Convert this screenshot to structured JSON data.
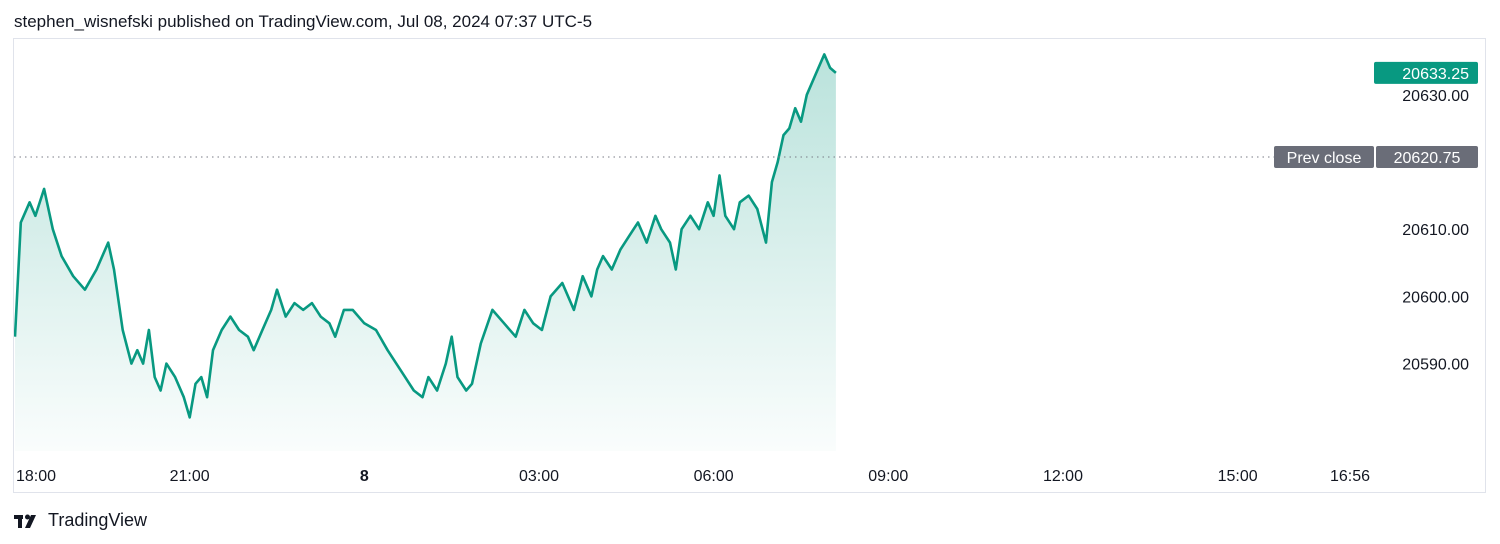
{
  "header": {
    "attribution": "stephen_wisnefski published on TradingView.com, Jul 08, 2024 07:37 UTC-5"
  },
  "footer": {
    "brand_label": "TradingView",
    "logo_icon": "tradingview-logo-icon"
  },
  "colors": {
    "line": "#089981",
    "fill_top": "#089981",
    "last_price_bg": "#089981",
    "prev_close_bg": "#6a6d78",
    "grid_dots": "#787b86"
  },
  "chart_data": {
    "type": "area",
    "ylim": [
      20577,
      20638
    ],
    "y_ticks": [
      20590.0,
      20600.0,
      20610.0,
      20630.0
    ],
    "y_tick_labels": [
      "20590.00",
      "20600.00",
      "20610.00",
      "20630.00"
    ],
    "x_ticks": [
      "18:00",
      "21:00",
      "8",
      "03:00",
      "06:00",
      "09:00",
      "12:00",
      "15:00",
      "16:56"
    ],
    "x_tick_hours": [
      0,
      3,
      6,
      9,
      12,
      15,
      18,
      21,
      22.93
    ],
    "bold_x_tick": "8",
    "prev_close": {
      "label": "Prev close",
      "value": 20620.75,
      "value_label": "20620.75"
    },
    "last_price": {
      "value": 20633.25,
      "value_label": "20633.25"
    },
    "series": [
      {
        "x": [
          0,
          0.1,
          0.25,
          0.35,
          0.5,
          0.65,
          0.8,
          1,
          1.2,
          1.4,
          1.6,
          1.7,
          1.85,
          2,
          2.1,
          2.2,
          2.3,
          2.4,
          2.5,
          2.6,
          2.75,
          2.9,
          3,
          3.1,
          3.2,
          3.3,
          3.4,
          3.55,
          3.7,
          3.85,
          4,
          4.1,
          4.25,
          4.4,
          4.5,
          4.65,
          4.8,
          4.95,
          5.1,
          5.25,
          5.4,
          5.5,
          5.65,
          5.8,
          6,
          6.2,
          6.4,
          6.55,
          6.7,
          6.85,
          7,
          7.1,
          7.25,
          7.4,
          7.5,
          7.6,
          7.75,
          7.85,
          8,
          8.2,
          8.4,
          8.6,
          8.75,
          8.9,
          9.05,
          9.2,
          9.4,
          9.6,
          9.75,
          9.9,
          10,
          10.1,
          10.25,
          10.4,
          10.55,
          10.7,
          10.85,
          11,
          11.1,
          11.25,
          11.35,
          11.45,
          11.6,
          11.75,
          11.9,
          12,
          12.1,
          12.2,
          12.35,
          12.45,
          12.6,
          12.75,
          12.9,
          13,
          13.1,
          13.2,
          13.3,
          13.4,
          13.5,
          13.6,
          13.75,
          13.9,
          14,
          14.1
        ],
        "values": [
          20594,
          20611,
          20614,
          20612,
          20616,
          20610,
          20606,
          20603,
          20601,
          20604,
          20608,
          20604,
          20595,
          20590,
          20592,
          20590,
          20595,
          20588,
          20586,
          20590,
          20588,
          20585,
          20582,
          20587,
          20588,
          20585,
          20592,
          20595,
          20597,
          20595,
          20594,
          20592,
          20595,
          20598,
          20601,
          20597,
          20599,
          20598,
          20599,
          20597,
          20596,
          20594,
          20598,
          20598,
          20596,
          20595,
          20592,
          20590,
          20588,
          20586,
          20585,
          20588,
          20586,
          20590,
          20594,
          20588,
          20586,
          20587,
          20593,
          20598,
          20596,
          20594,
          20598,
          20596,
          20595,
          20600,
          20602,
          20598,
          20603,
          20600,
          20604,
          20606,
          20604,
          20607,
          20609,
          20611,
          20608,
          20612,
          20610,
          20608,
          20604,
          20610,
          20612,
          20610,
          20614,
          20612,
          20618,
          20612,
          20610,
          20614,
          20615,
          20613,
          20608,
          20617,
          20620,
          20624,
          20625,
          20628,
          20626,
          20630,
          20633,
          20636,
          20634,
          20633.25
        ]
      }
    ]
  }
}
